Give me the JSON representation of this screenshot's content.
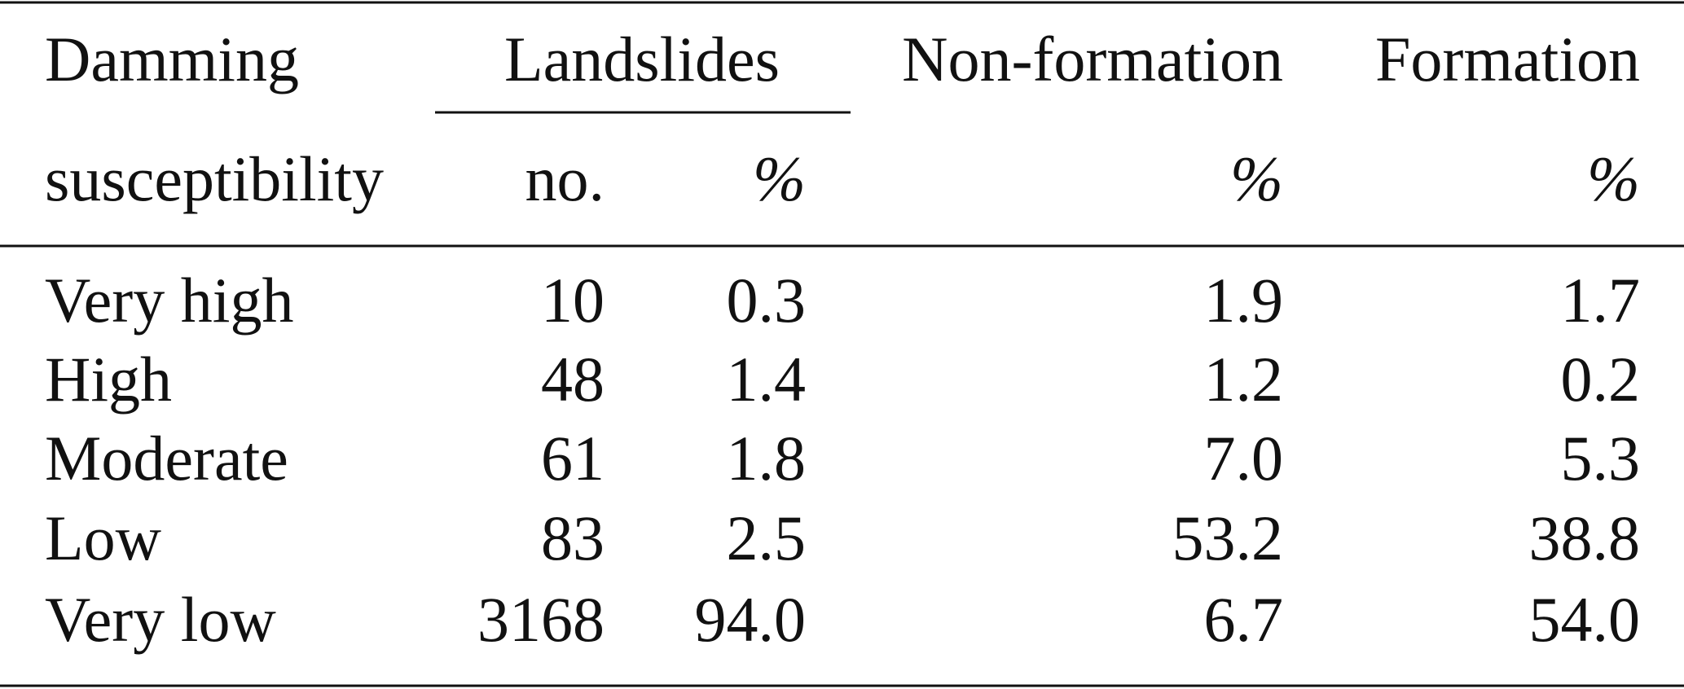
{
  "table": {
    "header": {
      "row1": [
        "Damming",
        "Landslides",
        "Non-formation",
        "Formation"
      ],
      "row2": [
        "susceptibility",
        "no.",
        "%",
        "%",
        "%"
      ]
    },
    "rows": [
      [
        "Very high",
        "10",
        "0.3",
        "1.9",
        "1.7"
      ],
      [
        "High",
        "48",
        "1.4",
        "1.2",
        "0.2"
      ],
      [
        "Moderate",
        "61",
        "1.8",
        "7.0",
        "5.3"
      ],
      [
        "Low",
        "83",
        "2.5",
        "53.2",
        "38.8"
      ],
      [
        "Very low",
        "3168",
        "94.0",
        "6.7",
        "54.0"
      ]
    ]
  }
}
